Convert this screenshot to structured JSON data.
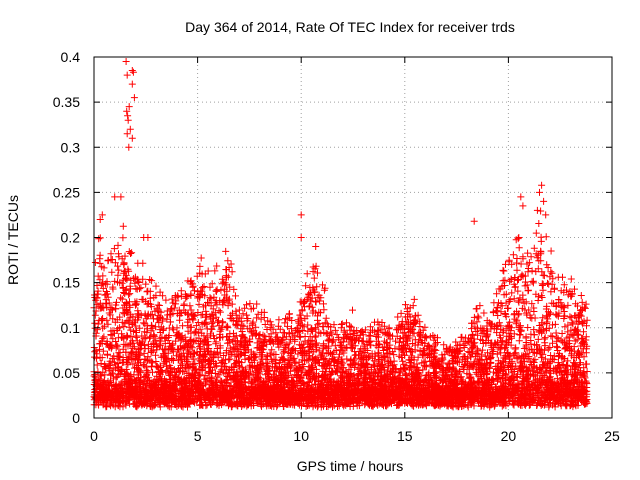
{
  "chart_data": {
    "type": "scatter",
    "title": "Day 364 of 2014, Rate Of TEC Index for receiver trds",
    "xlabel": "GPS time / hours",
    "ylabel": "ROTI / TECUs",
    "xlim": [
      0,
      25
    ],
    "ylim": [
      0,
      0.4
    ],
    "xticks": [
      0,
      5,
      10,
      15,
      20,
      25
    ],
    "xtick_labels": [
      "0",
      "5",
      "10",
      "15",
      "20",
      "25"
    ],
    "yticks": [
      0,
      0.05,
      0.1,
      0.15,
      0.2,
      0.25,
      0.3,
      0.35,
      0.4
    ],
    "ytick_labels": [
      "0",
      "0.05",
      "0.1",
      "0.15",
      "0.2",
      "0.25",
      "0.3",
      "0.35",
      "0.4"
    ],
    "grid": true,
    "marker": "plus",
    "series_color": "#ff0000",
    "envelope": {
      "description": "approximate upper envelope of the dense point cloud (hours, ROTI)",
      "x": [
        0,
        0.3,
        0.8,
        1.3,
        1.6,
        2.0,
        2.6,
        3.5,
        4.5,
        5.0,
        5.8,
        6.4,
        7.0,
        8.0,
        9.0,
        10.0,
        10.6,
        11.5,
        12.5,
        13.5,
        14.5,
        15.2,
        16.0,
        17.0,
        18.0,
        18.5,
        19.0,
        19.5,
        20.0,
        20.6,
        21.0,
        21.6,
        22.0,
        22.6,
        23.2,
        23.8
      ],
      "y": [
        0.16,
        0.19,
        0.17,
        0.2,
        0.18,
        0.17,
        0.15,
        0.13,
        0.14,
        0.17,
        0.15,
        0.17,
        0.12,
        0.12,
        0.1,
        0.12,
        0.18,
        0.1,
        0.11,
        0.1,
        0.1,
        0.14,
        0.09,
        0.08,
        0.09,
        0.12,
        0.11,
        0.14,
        0.17,
        0.2,
        0.17,
        0.23,
        0.17,
        0.15,
        0.14,
        0.13
      ]
    },
    "highlights": [
      {
        "x": 1.55,
        "y": 0.395
      },
      {
        "x": 1.6,
        "y": 0.38
      },
      {
        "x": 1.85,
        "y": 0.385
      },
      {
        "x": 1.9,
        "y": 0.383
      },
      {
        "x": 1.95,
        "y": 0.355
      },
      {
        "x": 1.85,
        "y": 0.37
      },
      {
        "x": 1.7,
        "y": 0.345
      },
      {
        "x": 1.65,
        "y": 0.33
      },
      {
        "x": 1.6,
        "y": 0.315
      },
      {
        "x": 1.75,
        "y": 0.32
      },
      {
        "x": 1.85,
        "y": 0.31
      },
      {
        "x": 1.68,
        "y": 0.3
      },
      {
        "x": 1.58,
        "y": 0.34
      },
      {
        "x": 1.62,
        "y": 0.335
      },
      {
        "x": 0.4,
        "y": 0.225
      },
      {
        "x": 0.3,
        "y": 0.22
      },
      {
        "x": 1.0,
        "y": 0.245
      },
      {
        "x": 1.3,
        "y": 0.245
      },
      {
        "x": 2.4,
        "y": 0.2
      },
      {
        "x": 2.6,
        "y": 0.2
      },
      {
        "x": 10.0,
        "y": 0.225
      },
      {
        "x": 10.0,
        "y": 0.2
      },
      {
        "x": 10.7,
        "y": 0.19
      },
      {
        "x": 18.35,
        "y": 0.218
      },
      {
        "x": 20.6,
        "y": 0.245
      },
      {
        "x": 20.7,
        "y": 0.235
      },
      {
        "x": 21.5,
        "y": 0.25
      },
      {
        "x": 21.6,
        "y": 0.258
      },
      {
        "x": 21.7,
        "y": 0.24
      },
      {
        "x": 21.8,
        "y": 0.225
      },
      {
        "x": 21.4,
        "y": 0.23
      },
      {
        "x": 20.5,
        "y": 0.2
      }
    ],
    "point_count": 7000,
    "seed": 364
  }
}
